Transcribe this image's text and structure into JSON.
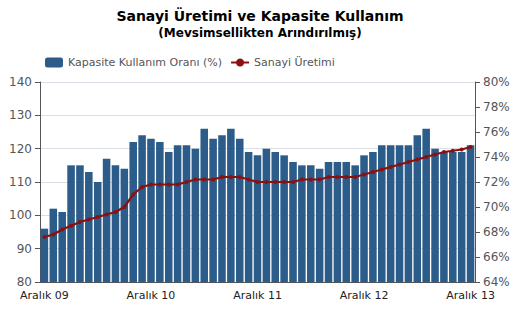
{
  "chart_data": {
    "type": "bar",
    "title": "Sanayi Üretimi ve Kapasite Kullanım",
    "subtitle": "(Mevsimsellikten Arındırılmış)",
    "categories": [
      "Aralık 09",
      null,
      null,
      null,
      null,
      null,
      null,
      null,
      null,
      null,
      null,
      null,
      "Aralık 10",
      null,
      null,
      null,
      null,
      null,
      null,
      null,
      null,
      null,
      null,
      null,
      "Aralık 11",
      null,
      null,
      null,
      null,
      null,
      null,
      null,
      null,
      null,
      null,
      null,
      "Aralık 12",
      null,
      null,
      null,
      null,
      null,
      null,
      null,
      null,
      null,
      null,
      null,
      "Aralık 13"
    ],
    "series": [
      {
        "name": "Kapasite Kullanım Oranı (%)",
        "type": "bar",
        "color": "#2B5C8A",
        "values": [
          96,
          102,
          101,
          115,
          115,
          113,
          110,
          117,
          115,
          114,
          122,
          124,
          123,
          122,
          119,
          121,
          121,
          120,
          126,
          123,
          124,
          126,
          123,
          119,
          118,
          120,
          119,
          118,
          116,
          115,
          115,
          114,
          116,
          116,
          116,
          115,
          118,
          119,
          121,
          121,
          121,
          121,
          124,
          126,
          120,
          119,
          119,
          119,
          121
        ]
      },
      {
        "name": "Sanayi Üretimi",
        "type": "line",
        "color": "#8B1010",
        "marker": "circle",
        "axis": "y2",
        "values": [
          0.676,
          0.678,
          0.682,
          0.685,
          0.688,
          0.69,
          0.692,
          0.694,
          0.696,
          0.7,
          0.71,
          0.716,
          0.718,
          0.718,
          0.718,
          0.718,
          0.72,
          0.722,
          0.722,
          0.722,
          0.724,
          0.724,
          0.724,
          0.722,
          0.72,
          0.72,
          0.72,
          0.72,
          0.72,
          0.722,
          0.722,
          0.722,
          0.724,
          0.724,
          0.724,
          0.724,
          0.726,
          0.728,
          0.73,
          0.732,
          0.734,
          0.736,
          0.738,
          0.74,
          0.742,
          0.744,
          0.745,
          0.746,
          0.748
        ]
      }
    ],
    "ylim": [
      80,
      140
    ],
    "yticks": [
      80,
      90,
      100,
      110,
      120,
      130,
      140
    ],
    "y2lim": [
      0.64,
      0.8
    ],
    "y2ticks": [
      {
        "value": 0.64,
        "label": "64%"
      },
      {
        "value": 0.66,
        "label": "66%"
      },
      {
        "value": 0.68,
        "label": "68%"
      },
      {
        "value": 0.7,
        "label": "70%"
      },
      {
        "value": 0.72,
        "label": "72%"
      },
      {
        "value": 0.74,
        "label": "74%"
      },
      {
        "value": 0.76,
        "label": "76%"
      },
      {
        "value": 0.78,
        "label": "78%"
      },
      {
        "value": 0.8,
        "label": "80%"
      }
    ],
    "grid": true,
    "legend": "upper left"
  }
}
